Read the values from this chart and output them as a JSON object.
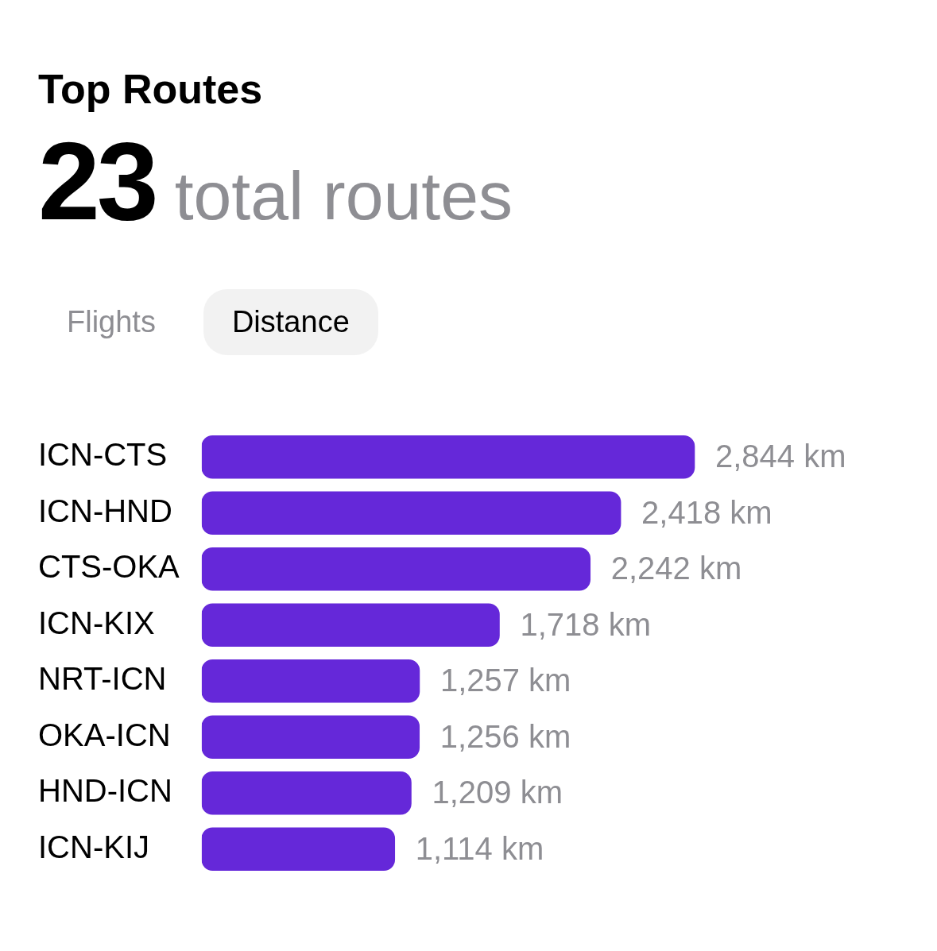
{
  "chart_data": {
    "type": "bar",
    "orientation": "horizontal",
    "title": "Top Routes",
    "subtitle": "23 total routes",
    "annotations": [
      "Flights",
      "Distance"
    ],
    "categories": [
      "ICN-CTS",
      "ICN-HND",
      "CTS-OKA",
      "ICN-KIX",
      "NRT-ICN",
      "OKA-ICN",
      "HND-ICN",
      "ICN-KIJ"
    ],
    "values": [
      2844,
      2418,
      2242,
      1718,
      1257,
      1256,
      1209,
      1114
    ],
    "value_labels": [
      "2,844 km",
      "2,418 km",
      "2,242 km",
      "1,718 km",
      "1,257 km",
      "1,256 km",
      "1,209 km",
      "1,114 km"
    ],
    "color": "#6528d9",
    "grid": false,
    "legend": false
  }
}
